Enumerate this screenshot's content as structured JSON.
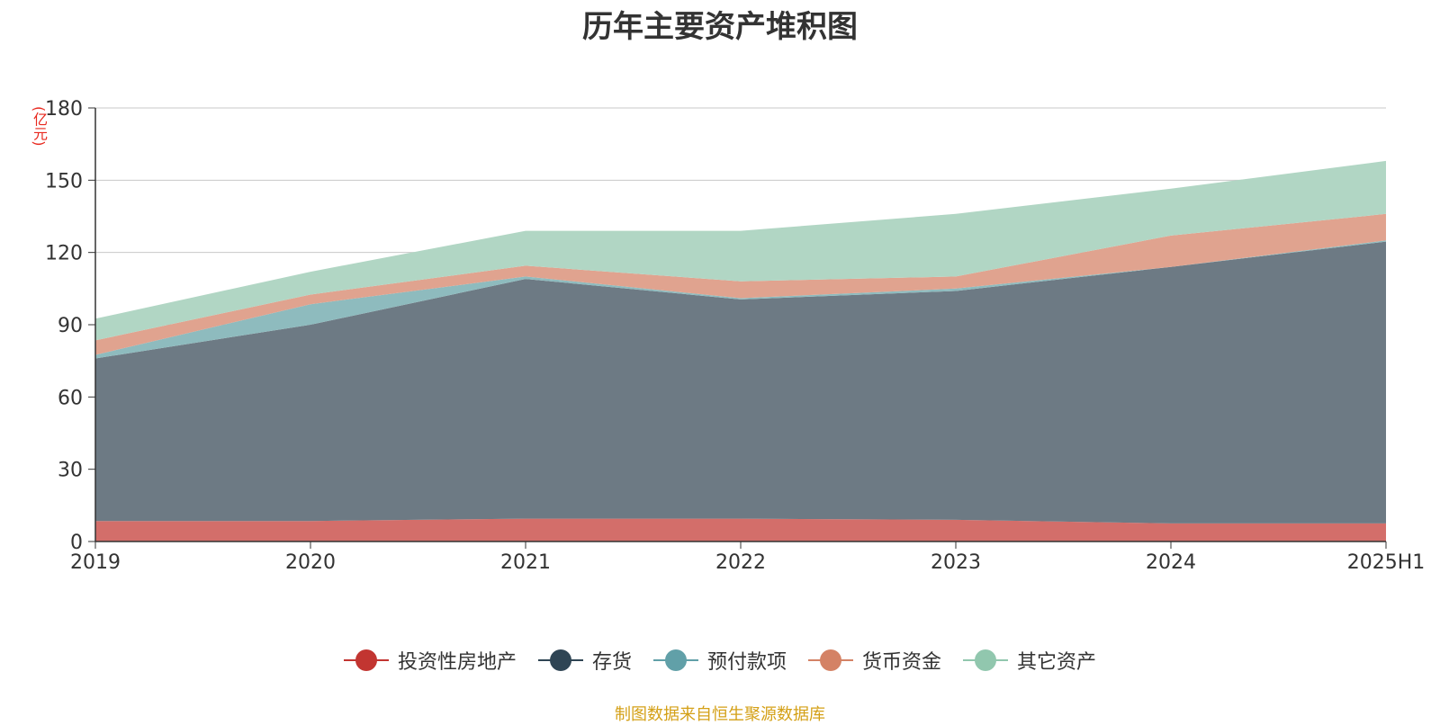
{
  "chart_data": {
    "type": "area",
    "stacked": true,
    "title": "历年主要资产堆积图",
    "y_unit": "(亿元)",
    "categories": [
      "2019",
      "2020",
      "2021",
      "2022",
      "2023",
      "2024",
      "2025H1"
    ],
    "ylim": [
      0,
      180
    ],
    "yticks": [
      0,
      30,
      60,
      90,
      120,
      150,
      180
    ],
    "grid": true,
    "legend_position": "bottom",
    "series": [
      {
        "name": "投资性房地产",
        "color": "#c23531",
        "area_color": "#d36e6a",
        "values": [
          8.5,
          8.5,
          9.5,
          9.5,
          9.0,
          7.5,
          7.5
        ]
      },
      {
        "name": "存货",
        "color": "#2f4554",
        "area_color": "#6d7a84",
        "values": [
          67.5,
          81.5,
          99.5,
          91.0,
          95.0,
          106.5,
          117.0
        ]
      },
      {
        "name": "预付款项",
        "color": "#61a0a8",
        "area_color": "#8ebbbe",
        "values": [
          1.5,
          8.5,
          1.0,
          0.5,
          1.0,
          0.0,
          0.5
        ]
      },
      {
        "name": "货币资金",
        "color": "#d48265",
        "area_color": "#e0a38f",
        "values": [
          6.0,
          4.0,
          4.5,
          7.0,
          5.0,
          13.0,
          11.0
        ]
      },
      {
        "name": "其它资产",
        "color": "#91c7ae",
        "area_color": "#b1d6c4",
        "values": [
          9.0,
          9.5,
          14.5,
          21.0,
          26.0,
          19.5,
          22.0
        ]
      }
    ]
  },
  "footer": {
    "source": "制图数据来自恒生聚源数据库"
  }
}
